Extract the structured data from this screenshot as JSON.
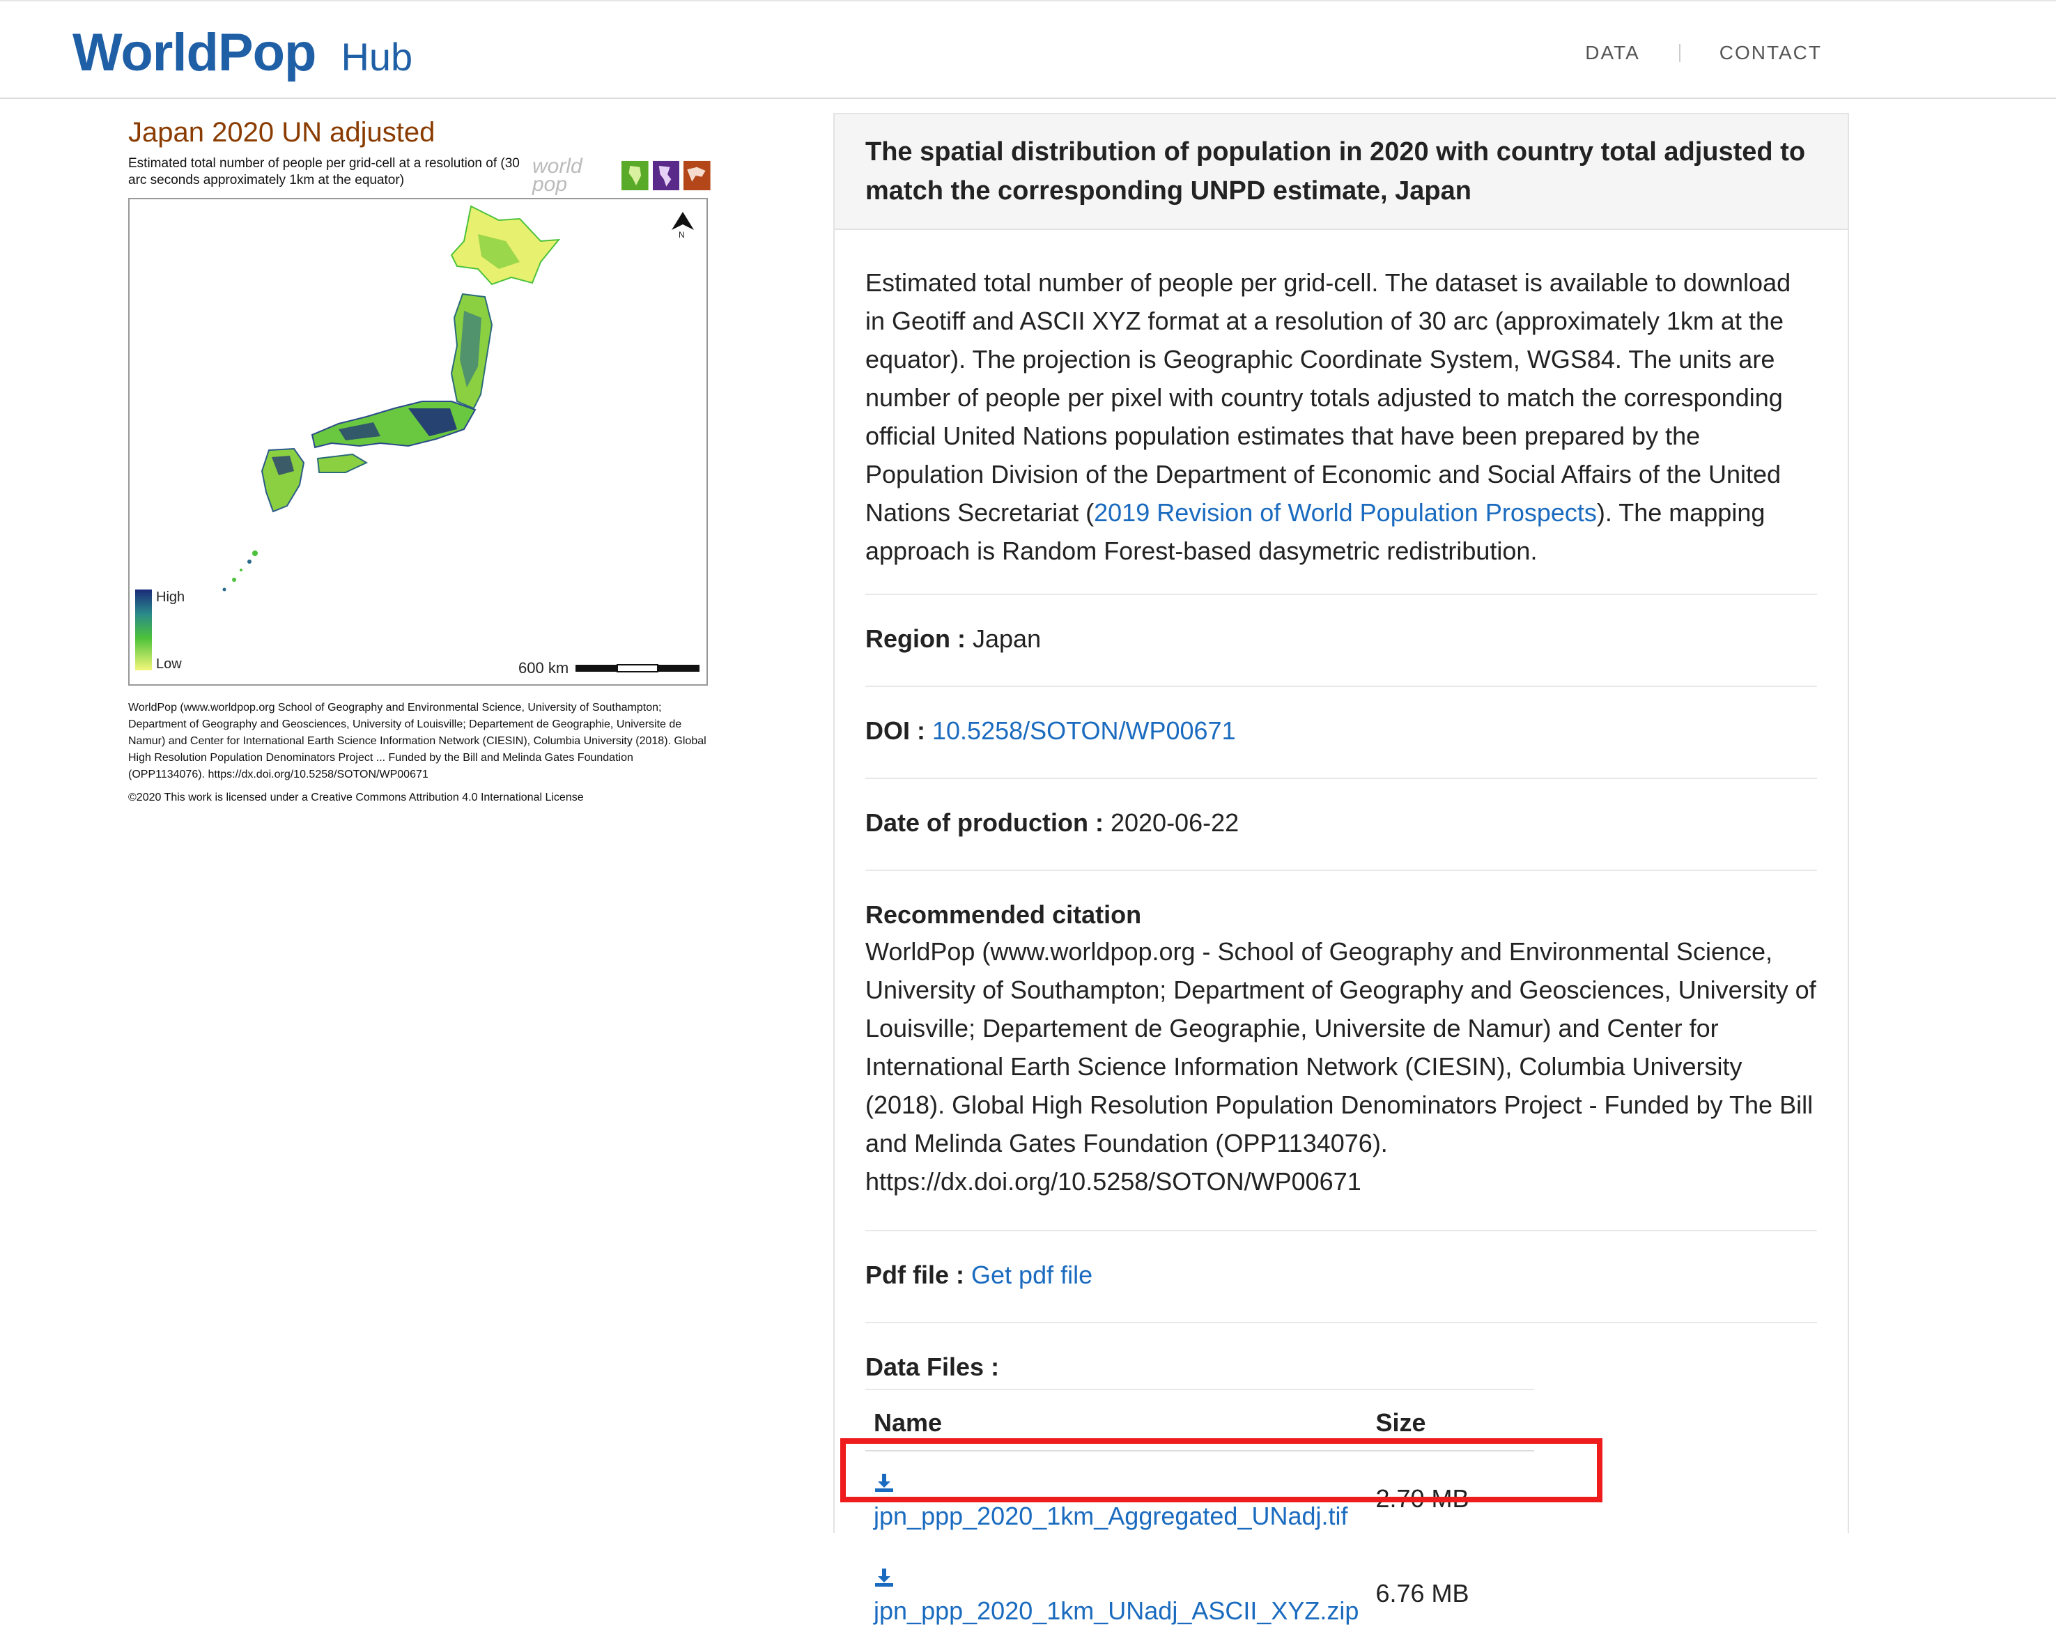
{
  "header": {
    "logo_word": "WorldPop",
    "logo_hub": "Hub",
    "nav": [
      {
        "label": "DATA"
      },
      {
        "label": "CONTACT"
      }
    ]
  },
  "map": {
    "title": "Japan 2020 UN adjusted",
    "subtitle": "Estimated total number of people per grid-cell at a resolution of (30 arc seconds approximately 1km at the equator)",
    "logo_text": "world pop",
    "north_label": "N",
    "legend_high": "High",
    "legend_low": "Low",
    "scale_label": "600 km",
    "caption": "WorldPop (www.worldpop.org School of Geography and Environmental Science, University of Southampton; Department of Geography and Geosciences, University of Louisville; Departement de Geographie, Universite de Namur) and Center for International Earth Science Information Network (CIESIN), Columbia University (2018). Global High Resolution Population Denominators Project ... Funded by the Bill and Melinda Gates Foundation (OPP1134076). https://dx.doi.org/10.5258/SOTON/WP00671",
    "license": "©2020 This work is licensed under a Creative Commons Attribution 4.0 International License",
    "colors": {
      "high": "#1a2a7a",
      "mid": "#2a8a8a",
      "green": "#4cc23a",
      "low": "#f4f77a"
    }
  },
  "info": {
    "title": "The spatial distribution of population in 2020 with country total adjusted to match the corresponding UNPD estimate, Japan",
    "desc_part1": "Estimated total number of people per grid-cell. The dataset is available to download in Geotiff and ASCII XYZ format at a resolution of 30 arc (approximately 1km at the equator). The projection is Geographic Coordinate System, WGS84. The units are number of people per pixel with country totals adjusted to match the corresponding official United Nations population estimates that have been prepared by the Population Division of the Department of Economic and Social Affairs of the United Nations Secretariat (",
    "desc_link": "2019 Revision of World Population Prospects",
    "desc_part2": "). The mapping approach is Random Forest-based dasymetric redistribution.",
    "region_label": "Region :",
    "region_value": "Japan",
    "doi_label": "DOI :",
    "doi_value": "10.5258/SOTON/WP00671",
    "date_label": "Date of production :",
    "date_value": "2020-06-22",
    "citation_label": "Recommended citation",
    "citation_text": "WorldPop (www.worldpop.org - School of Geography and Environmental Science, University of Southampton; Department of Geography and Geosciences, University of Louisville; Departement de Geographie, Universite de Namur) and Center for International Earth Science Information Network (CIESIN), Columbia University (2018). Global High Resolution Population Denominators Project - Funded by The Bill and Melinda Gates Foundation (OPP1134076). https://dx.doi.org/10.5258/SOTON/WP00671",
    "pdf_label": "Pdf file :",
    "pdf_link": "Get pdf file",
    "files_label": "Data Files :",
    "files_headers": {
      "name": "Name",
      "size": "Size"
    },
    "files": [
      {
        "name": "jpn_ppp_2020_1km_Aggregated_UNadj.tif",
        "size": "2.70 MB"
      },
      {
        "name": "jpn_ppp_2020_1km_UNadj_ASCII_XYZ.zip",
        "size": "6.76 MB"
      }
    ]
  },
  "accent_colors": {
    "link": "#1a6bbf",
    "brand": "#1f5fa6",
    "highlight": "#ee1c1c",
    "map_title": "#8a3b00"
  }
}
